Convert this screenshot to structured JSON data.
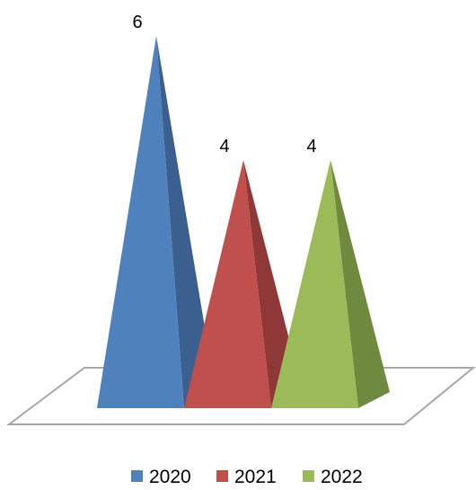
{
  "chart_data": {
    "type": "bar",
    "shape": "3d-pyramid",
    "categories": [
      "2020",
      "2021",
      "2022"
    ],
    "values": [
      6,
      4,
      4
    ],
    "colors": [
      "#4f81bd",
      "#c0504d",
      "#9bbb59"
    ],
    "side_colors": [
      "#3b5f8e",
      "#8e3937",
      "#6f8a3e"
    ],
    "data_labels": [
      "6",
      "4",
      "4"
    ],
    "title": "",
    "xlabel": "",
    "ylabel": "",
    "ylim": [
      0,
      6
    ],
    "grid": false,
    "legend": {
      "position": "bottom",
      "entries": [
        "2020",
        "2021",
        "2022"
      ]
    }
  }
}
